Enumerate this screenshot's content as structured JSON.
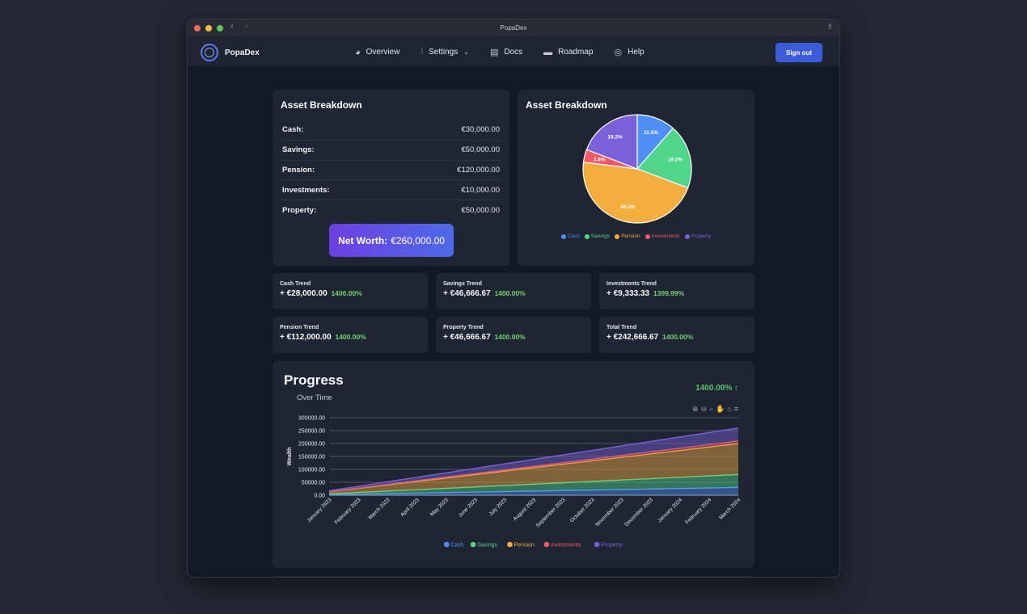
{
  "window": {
    "title": "PopaDex"
  },
  "nav": {
    "brand": "PopaDex",
    "items": [
      {
        "label": "Overview",
        "icon": "pie-icon"
      },
      {
        "label": "Settings",
        "icon": "sliders-icon"
      },
      {
        "label": "Docs",
        "icon": "clipboard-icon"
      },
      {
        "label": "Roadmap",
        "icon": "road-icon"
      },
      {
        "label": "Help",
        "icon": "lifebuoy-icon"
      }
    ],
    "signout": "Sign out"
  },
  "breakdown": {
    "title": "Asset Breakdown",
    "rows": [
      {
        "label": "Cash:",
        "value": "€30,000.00"
      },
      {
        "label": "Savings:",
        "value": "€50,000.00"
      },
      {
        "label": "Pension:",
        "value": "€120,000.00"
      },
      {
        "label": "Investments:",
        "value": "€10,000.00"
      },
      {
        "label": "Property:",
        "value": "€50,000.00"
      }
    ],
    "networth_label": "Net Worth:",
    "networth_value": "€260,000.00"
  },
  "pie": {
    "title": "Asset Breakdown"
  },
  "trends": [
    {
      "title": "Cash Trend",
      "value": "+ €28,000.00",
      "pct": "1400.00%"
    },
    {
      "title": "Savings Trend",
      "value": "+ €46,666.67",
      "pct": "1400.00%"
    },
    {
      "title": "Investments Trend",
      "value": "+ €9,333.33",
      "pct": "1399.99%"
    },
    {
      "title": "Pension Trend",
      "value": "+ €112,000.00",
      "pct": "1400.00%"
    },
    {
      "title": "Property Trend",
      "value": "+ €46,666.67",
      "pct": "1400.00%"
    },
    {
      "title": "Total Trend",
      "value": "+ €242,666.67",
      "pct": "1400.00%"
    }
  ],
  "progress": {
    "title": "Progress",
    "subtitle": "Over Time",
    "pct": "1400.00% ↑",
    "toolbar_icons": [
      "zoom-in-icon",
      "zoom-out-icon",
      "magnifier-icon",
      "pan-hand-icon",
      "home-icon",
      "menu-icon"
    ]
  },
  "colors": {
    "cash": "#4f8ff7",
    "savings": "#4fd68b",
    "pension": "#f4ae3d",
    "investments": "#ef5a67",
    "property": "#7b61d9"
  },
  "chart_data": [
    {
      "type": "pie",
      "title": "Asset Breakdown",
      "labels": [
        "Cash",
        "Savings",
        "Pension",
        "Investments",
        "Property"
      ],
      "values": [
        11.5,
        19.2,
        46.2,
        3.8,
        19.2
      ],
      "value_labels": [
        "11.5%",
        "19.2%",
        "46.2%",
        "3.8%",
        "19.2%"
      ],
      "legend": "bottom"
    },
    {
      "type": "area",
      "stacked": true,
      "ylabel": "Wealth",
      "ylim": [
        0,
        300000
      ],
      "yticks": [
        "300000.00",
        "250000.00",
        "200000.00",
        "150000.00",
        "100000.00",
        "50000.00",
        "0.00"
      ],
      "categories": [
        "January 2023",
        "February 2023",
        "March 2023",
        "April 2023",
        "May 2023",
        "June 2023",
        "July 2023",
        "August 2023",
        "September 2023",
        "October 2023",
        "November 2023",
        "December 2023",
        "January 2024",
        "February 2024",
        "March 2024"
      ],
      "series": [
        {
          "name": "Cash",
          "values": [
            2000,
            4000,
            6000,
            8000,
            10000,
            12000,
            14000,
            16000,
            18000,
            20000,
            22000,
            24000,
            26000,
            28000,
            30000
          ]
        },
        {
          "name": "Savings",
          "values": [
            3333,
            6667,
            10000,
            13333,
            16667,
            20000,
            23333,
            26667,
            30000,
            33333,
            36667,
            40000,
            43333,
            46667,
            50000
          ]
        },
        {
          "name": "Pension",
          "values": [
            8000,
            16000,
            24000,
            32000,
            40000,
            48000,
            56000,
            64000,
            72000,
            80000,
            88000,
            96000,
            104000,
            112000,
            120000
          ]
        },
        {
          "name": "Investments",
          "values": [
            667,
            1333,
            2000,
            2667,
            3333,
            4000,
            4667,
            5333,
            6000,
            6667,
            7333,
            8000,
            8667,
            9333,
            10000
          ]
        },
        {
          "name": "Property",
          "values": [
            3333,
            6667,
            10000,
            13333,
            16667,
            20000,
            23333,
            26667,
            30000,
            33333,
            36667,
            40000,
            43333,
            46667,
            50000
          ]
        }
      ],
      "legend": "bottom"
    }
  ]
}
